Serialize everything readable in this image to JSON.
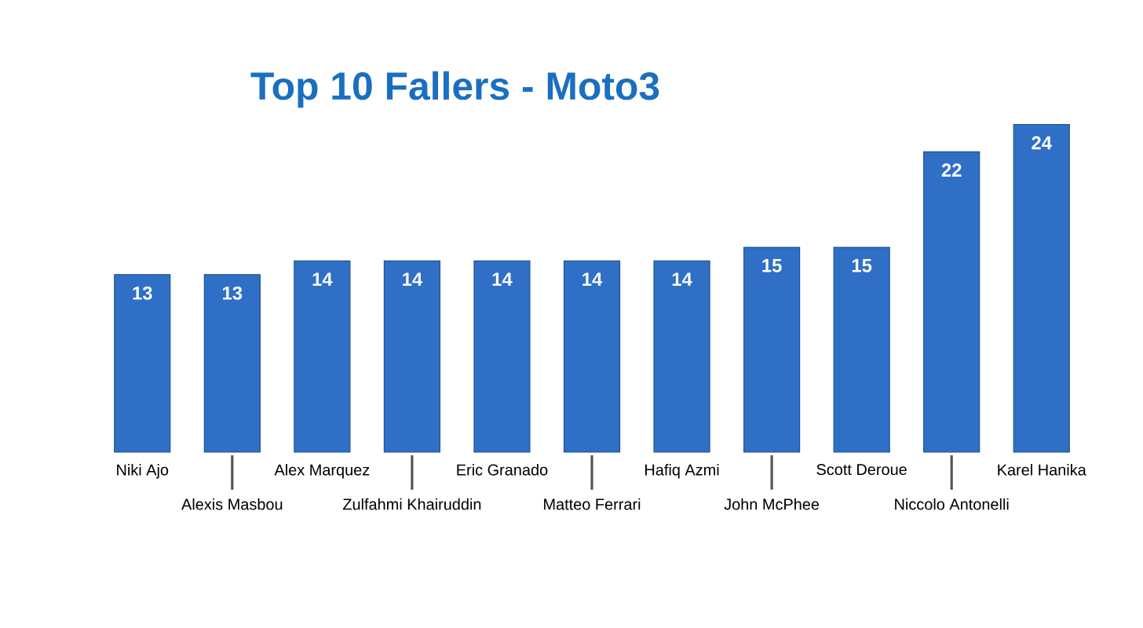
{
  "chart_data": {
    "type": "bar",
    "title": "Top 10 Fallers - Moto3",
    "categories": [
      "Niki Ajo",
      "Alexis Masbou",
      "Alex Marquez",
      "Zulfahmi Khairuddin",
      "Eric Granado",
      "Matteo Ferrari",
      "Hafiq Azmi",
      "John McPhee",
      "Scott Deroue",
      "Niccolo Antonelli",
      "Karel Hanika"
    ],
    "values": [
      13,
      13,
      14,
      14,
      14,
      14,
      14,
      15,
      15,
      22,
      24
    ],
    "color": "#2f6fc6",
    "data_labels": true
  }
}
